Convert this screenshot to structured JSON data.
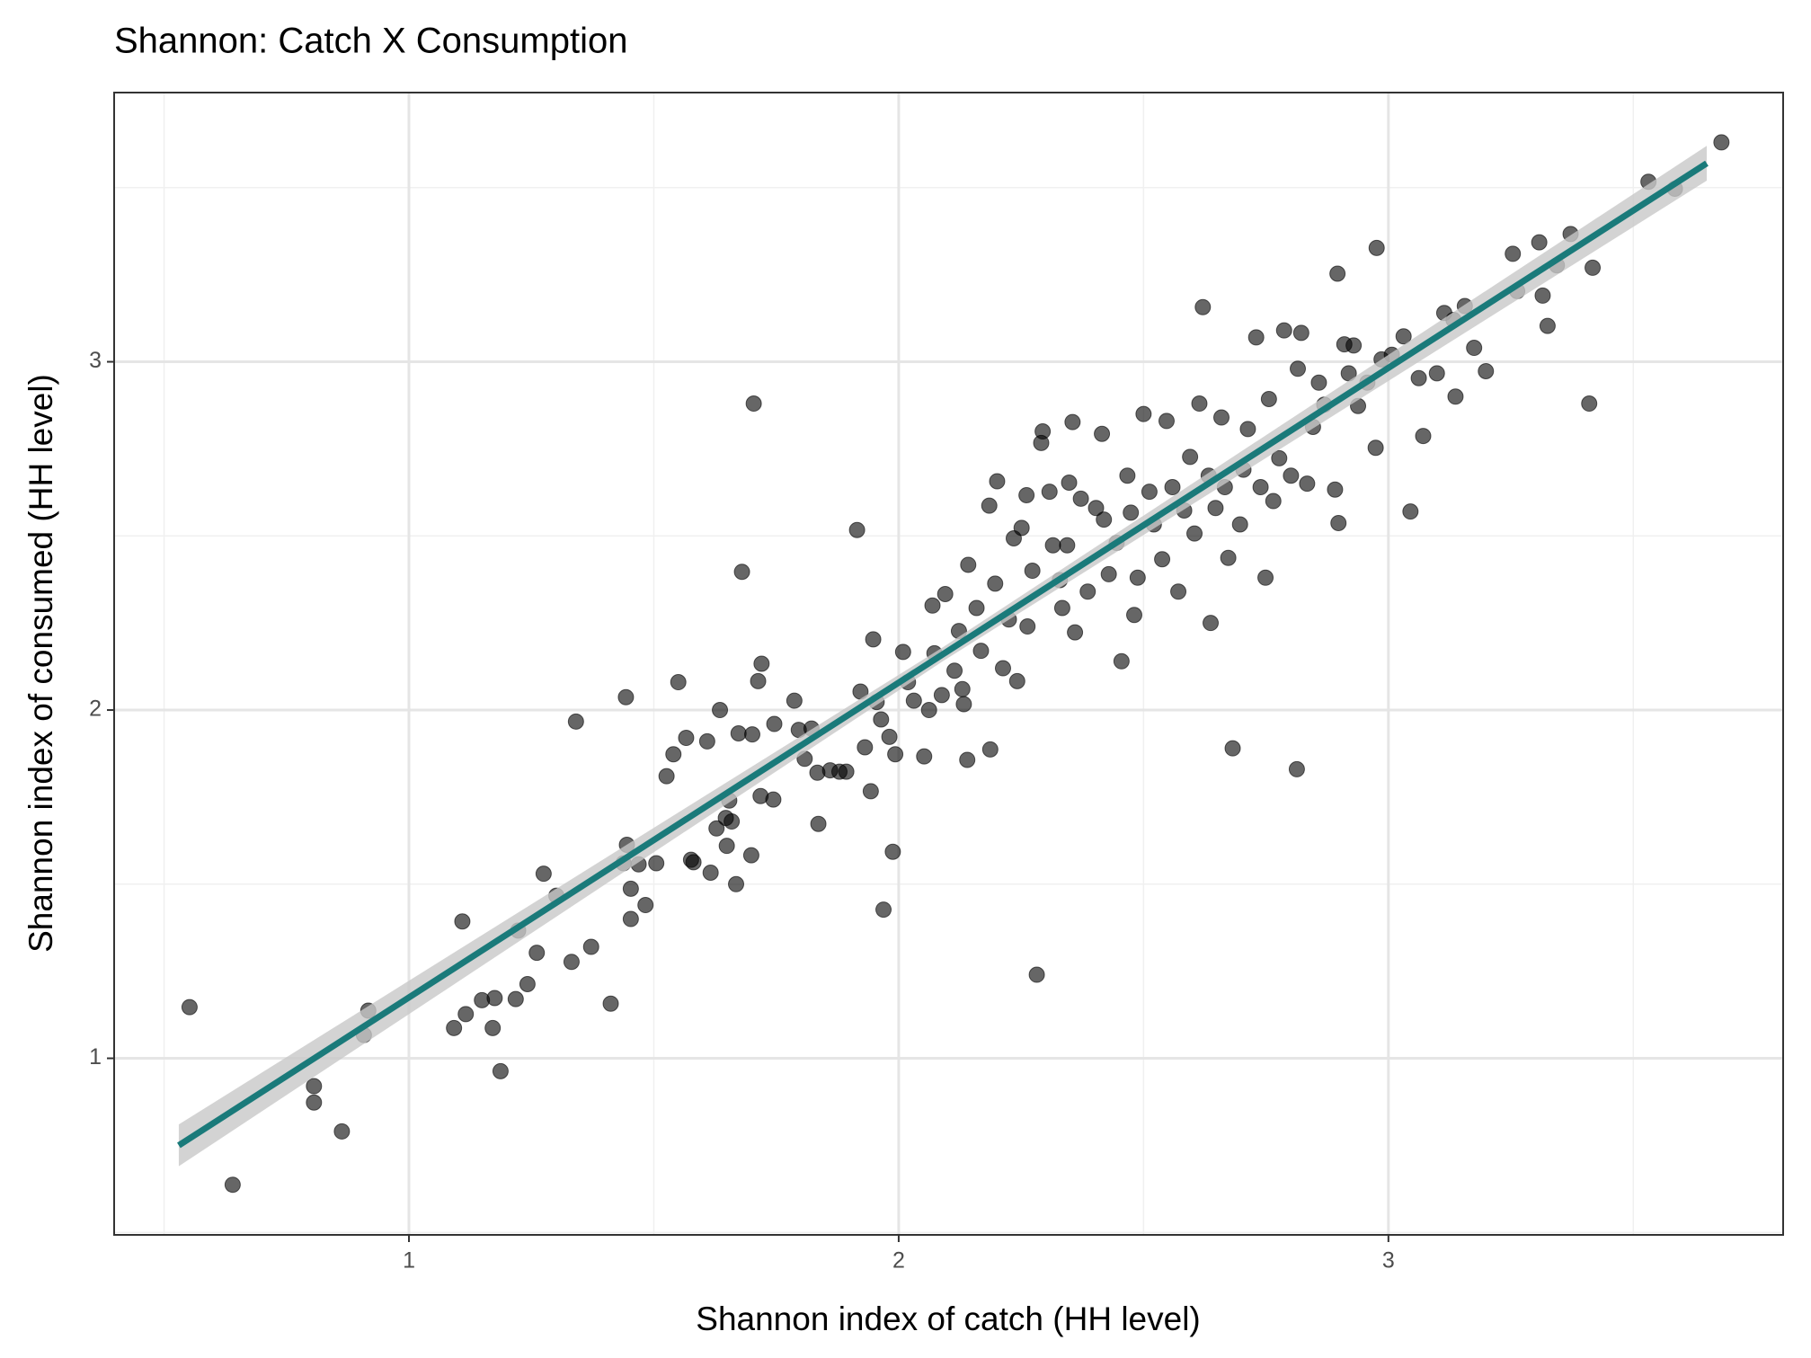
{
  "chart_data": {
    "type": "scatter",
    "title": "Shannon: Catch X Consumption",
    "x_label": "Shannon index of catch (HH level)",
    "y_label": "Shannon index of consumed (HH level)",
    "xlim": [
      0.398,
      3.806
    ],
    "ylim": [
      0.493,
      3.773
    ],
    "xticks": [
      1,
      2,
      3
    ],
    "yticks": [
      1,
      2,
      3
    ],
    "xminor": [
      0.5,
      1.5,
      2.5,
      3.5
    ],
    "yminor": [
      0.5,
      1.5,
      2.5,
      3.5
    ],
    "grid": true,
    "color": "#000000",
    "x": [
      0.552,
      0.64,
      0.806,
      0.806,
      0.863,
      0.908,
      0.917,
      1.092,
      1.109,
      1.116,
      1.149,
      1.171,
      1.175,
      1.187,
      1.218,
      1.223,
      1.242,
      1.261,
      1.275,
      1.301,
      1.332,
      1.341,
      1.372,
      1.412,
      1.443,
      1.445,
      1.438,
      1.453,
      1.453,
      1.469,
      1.483,
      1.505,
      1.526,
      1.54,
      1.55,
      1.566,
      1.576,
      1.581,
      1.609,
      1.616,
      1.635,
      1.628,
      1.647,
      1.649,
      1.654,
      1.659,
      1.668,
      1.673,
      1.68,
      1.699,
      1.704,
      1.701,
      1.713,
      1.72,
      1.718,
      1.744,
      1.746,
      1.787,
      1.796,
      1.808,
      1.822,
      1.834,
      1.836,
      1.86,
      1.879,
      1.893,
      1.915,
      1.922,
      1.931,
      1.943,
      1.948,
      1.955,
      1.964,
      1.969,
      1.981,
      1.988,
      1.993,
      2.009,
      2.019,
      2.031,
      2.052,
      2.062,
      2.073,
      2.069,
      2.088,
      2.095,
      2.114,
      2.123,
      2.13,
      2.133,
      2.14,
      2.142,
      2.159,
      2.168,
      2.187,
      2.185,
      2.201,
      2.197,
      2.213,
      2.225,
      2.235,
      2.242,
      2.251,
      2.261,
      2.263,
      2.273,
      2.282,
      2.291,
      2.294,
      2.308,
      2.315,
      2.329,
      2.334,
      2.344,
      2.348,
      2.355,
      2.36,
      2.372,
      2.386,
      2.403,
      2.415,
      2.419,
      2.429,
      2.445,
      2.455,
      2.467,
      2.474,
      2.481,
      2.488,
      2.5,
      2.512,
      2.521,
      2.538,
      2.547,
      2.559,
      2.571,
      2.583,
      2.595,
      2.604,
      2.614,
      2.621,
      2.633,
      2.637,
      2.647,
      2.659,
      2.666,
      2.673,
      2.682,
      2.697,
      2.704,
      2.713,
      2.73,
      2.739,
      2.749,
      2.756,
      2.765,
      2.777,
      2.787,
      2.801,
      2.813,
      2.815,
      2.822,
      2.834,
      2.846,
      2.858,
      2.869,
      2.891,
      2.896,
      2.898,
      2.91,
      2.919,
      2.929,
      2.938,
      2.957,
      2.976,
      2.974,
      2.986,
      3.007,
      3.031,
      3.045,
      3.062,
      3.071,
      3.099,
      3.114,
      3.133,
      3.137,
      3.156,
      3.175,
      3.199,
      3.254,
      3.263,
      3.308,
      3.315,
      3.325,
      3.344,
      3.372,
      3.41,
      3.417,
      3.531,
      3.585,
      3.68
    ],
    "values": [
      1.147,
      0.637,
      0.92,
      0.873,
      0.79,
      1.067,
      1.137,
      1.087,
      1.393,
      1.127,
      1.167,
      1.087,
      1.173,
      0.963,
      1.17,
      1.367,
      1.213,
      1.303,
      1.53,
      1.467,
      1.277,
      1.967,
      1.32,
      1.157,
      2.037,
      1.613,
      1.56,
      1.487,
      1.4,
      1.557,
      1.44,
      1.56,
      1.81,
      1.873,
      2.08,
      1.92,
      1.57,
      1.563,
      1.91,
      1.533,
      2.0,
      1.66,
      1.69,
      1.61,
      1.74,
      1.68,
      1.5,
      1.933,
      2.397,
      1.583,
      2.88,
      1.93,
      2.083,
      2.133,
      1.753,
      1.743,
      1.96,
      2.027,
      1.943,
      1.86,
      1.947,
      1.82,
      1.673,
      1.827,
      1.823,
      1.823,
      2.517,
      2.053,
      1.893,
      1.767,
      2.203,
      2.023,
      1.973,
      1.427,
      1.923,
      1.593,
      1.873,
      2.167,
      2.08,
      2.027,
      1.867,
      2.0,
      2.163,
      2.3,
      2.043,
      2.333,
      2.113,
      2.227,
      2.06,
      2.017,
      1.857,
      2.417,
      2.293,
      2.17,
      1.887,
      2.587,
      2.657,
      2.363,
      2.12,
      2.26,
      2.493,
      2.083,
      2.523,
      2.617,
      2.24,
      2.4,
      1.24,
      2.767,
      2.8,
      2.627,
      2.473,
      2.373,
      2.293,
      2.473,
      2.653,
      2.827,
      2.223,
      2.607,
      2.34,
      2.58,
      2.793,
      2.547,
      2.39,
      2.48,
      2.14,
      2.673,
      2.567,
      2.273,
      2.38,
      2.85,
      2.627,
      2.533,
      2.433,
      2.83,
      2.64,
      2.34,
      2.573,
      2.727,
      2.507,
      2.88,
      3.157,
      2.673,
      2.25,
      2.58,
      2.84,
      2.64,
      2.437,
      1.89,
      2.533,
      2.69,
      2.807,
      3.07,
      2.64,
      2.38,
      2.893,
      2.6,
      2.723,
      3.09,
      2.673,
      1.83,
      2.98,
      3.083,
      2.65,
      2.813,
      2.94,
      2.877,
      2.633,
      3.253,
      2.537,
      3.05,
      2.967,
      3.047,
      2.873,
      2.94,
      3.327,
      2.753,
      3.007,
      3.02,
      3.073,
      2.57,
      2.953,
      2.787,
      2.967,
      3.14,
      3.12,
      2.9,
      3.16,
      3.04,
      2.973,
      3.31,
      3.203,
      3.343,
      3.19,
      3.103,
      3.277,
      3.367,
      2.88,
      3.27,
      3.517,
      3.497,
      3.63
    ],
    "trend": {
      "x": [
        0.53,
        2.09,
        3.65
      ],
      "values": [
        0.75,
        2.16,
        3.57
      ],
      "lower": [
        0.69,
        2.14,
        3.52
      ],
      "upper": [
        0.81,
        2.18,
        3.62
      ],
      "color": "#1a7a7a",
      "band_color": "#c8c8c8"
    }
  }
}
